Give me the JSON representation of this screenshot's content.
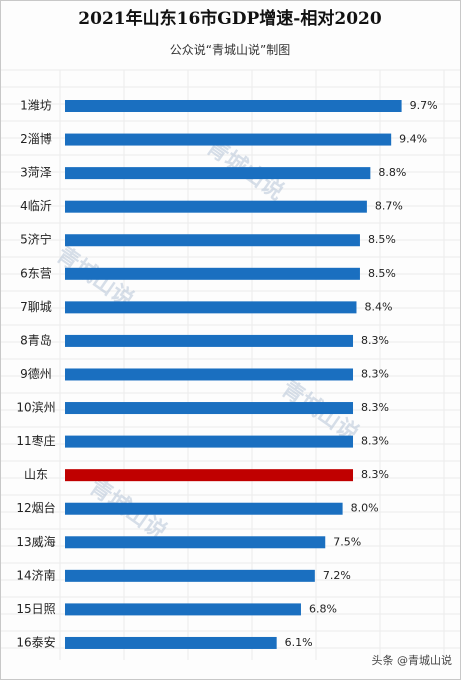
{
  "chart_data": {
    "type": "barh",
    "title": "2021年山东16市GDP增速-相对2020",
    "subtitle": "公众说“青城山说”制图",
    "categories": [
      "1潍坊",
      "2淄博",
      "3菏泽",
      "4临沂",
      "5济宁",
      "6东营",
      "7聊城",
      "8青岛",
      "9德州",
      "10滨州",
      "11枣庄",
      "山东",
      "12烟台",
      "13威海",
      "14济南",
      "15日照",
      "16泰安"
    ],
    "values": [
      9.7,
      9.4,
      8.8,
      8.7,
      8.5,
      8.5,
      8.4,
      8.3,
      8.3,
      8.3,
      8.3,
      8.3,
      8.0,
      7.5,
      7.2,
      6.8,
      6.1
    ],
    "value_labels": [
      "9.7%",
      "9.4%",
      "8.8%",
      "8.7%",
      "8.5%",
      "8.5%",
      "8.4%",
      "8.3%",
      "8.3%",
      "8.3%",
      "8.3%",
      "8.3%",
      "8.0%",
      "7.5%",
      "7.2%",
      "6.8%",
      "6.1%"
    ],
    "colors": [
      "#1a6fc0",
      "#1a6fc0",
      "#1a6fc0",
      "#1a6fc0",
      "#1a6fc0",
      "#1a6fc0",
      "#1a6fc0",
      "#1a6fc0",
      "#1a6fc0",
      "#1a6fc0",
      "#1a6fc0",
      "#c00000",
      "#1a6fc0",
      "#1a6fc0",
      "#1a6fc0",
      "#1a6fc0",
      "#1a6fc0"
    ],
    "xlim": [
      0,
      10
    ],
    "watermark": "青城山说",
    "footer": "头条 @青城山说"
  }
}
